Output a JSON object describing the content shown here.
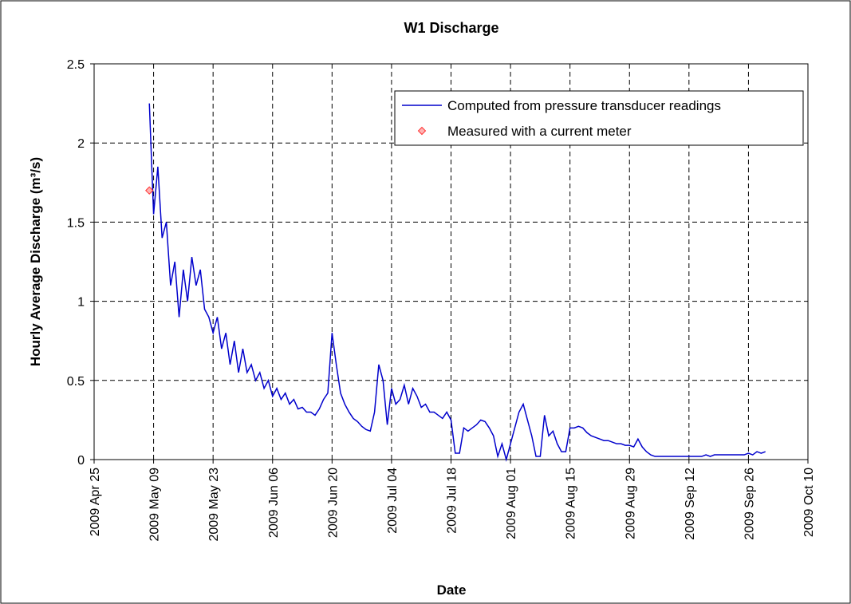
{
  "chart_data": {
    "type": "line",
    "title": "W1 Discharge",
    "x_label": "Date",
    "y_label": "Hourly Average Discharge (m³/s)",
    "xlim": [
      "2009-04-25",
      "2009-10-10"
    ],
    "xticks": [
      {
        "value": "2009-04-25",
        "label": "2009 Apr 25"
      },
      {
        "value": "2009-05-09",
        "label": "2009 May 09"
      },
      {
        "value": "2009-05-23",
        "label": "2009 May 23"
      },
      {
        "value": "2009-06-06",
        "label": "2009 Jun 06"
      },
      {
        "value": "2009-06-20",
        "label": "2009 Jun 20"
      },
      {
        "value": "2009-07-04",
        "label": "2009 Jul 04"
      },
      {
        "value": "2009-07-18",
        "label": "2009 Jul 18"
      },
      {
        "value": "2009-08-01",
        "label": "2009 Aug 01"
      },
      {
        "value": "2009-08-15",
        "label": "2009 Aug 15"
      },
      {
        "value": "2009-08-29",
        "label": "2009 Aug 29"
      },
      {
        "value": "2009-09-12",
        "label": "2009 Sep 12"
      },
      {
        "value": "2009-09-26",
        "label": "2009 Sep 26"
      },
      {
        "value": "2009-10-10",
        "label": "2009 Oct 10"
      }
    ],
    "ylim": [
      0,
      2.5
    ],
    "yticks": [
      0,
      0.5,
      1,
      1.5,
      2,
      2.5
    ],
    "grid": true,
    "legend": "upper right",
    "series": [
      {
        "name": "Computed from pressure transducer readings",
        "color": "#0000cc",
        "type": "line",
        "x": [
          "2009-05-08",
          "2009-05-09",
          "2009-05-10",
          "2009-05-11",
          "2009-05-12",
          "2009-05-13",
          "2009-05-14",
          "2009-05-15",
          "2009-05-16",
          "2009-05-17",
          "2009-05-18",
          "2009-05-19",
          "2009-05-20",
          "2009-05-21",
          "2009-05-22",
          "2009-05-23",
          "2009-05-24",
          "2009-05-25",
          "2009-05-26",
          "2009-05-27",
          "2009-05-28",
          "2009-05-29",
          "2009-05-30",
          "2009-05-31",
          "2009-06-01",
          "2009-06-02",
          "2009-06-03",
          "2009-06-04",
          "2009-06-05",
          "2009-06-06",
          "2009-06-07",
          "2009-06-08",
          "2009-06-09",
          "2009-06-10",
          "2009-06-11",
          "2009-06-12",
          "2009-06-13",
          "2009-06-14",
          "2009-06-15",
          "2009-06-16",
          "2009-06-17",
          "2009-06-18",
          "2009-06-19",
          "2009-06-20",
          "2009-06-21",
          "2009-06-22",
          "2009-06-23",
          "2009-06-24",
          "2009-06-25",
          "2009-06-26",
          "2009-06-27",
          "2009-06-28",
          "2009-06-29",
          "2009-06-30",
          "2009-07-01",
          "2009-07-02",
          "2009-07-03",
          "2009-07-04",
          "2009-07-05",
          "2009-07-06",
          "2009-07-07",
          "2009-07-08",
          "2009-07-09",
          "2009-07-10",
          "2009-07-11",
          "2009-07-12",
          "2009-07-13",
          "2009-07-14",
          "2009-07-15",
          "2009-07-16",
          "2009-07-17",
          "2009-07-18",
          "2009-07-19",
          "2009-07-20",
          "2009-07-21",
          "2009-07-22",
          "2009-07-23",
          "2009-07-24",
          "2009-07-25",
          "2009-07-26",
          "2009-07-27",
          "2009-07-28",
          "2009-07-29",
          "2009-07-30",
          "2009-07-31",
          "2009-08-01",
          "2009-08-02",
          "2009-08-03",
          "2009-08-04",
          "2009-08-05",
          "2009-08-06",
          "2009-08-07",
          "2009-08-08",
          "2009-08-09",
          "2009-08-10",
          "2009-08-11",
          "2009-08-12",
          "2009-08-13",
          "2009-08-14",
          "2009-08-15",
          "2009-08-16",
          "2009-08-17",
          "2009-08-18",
          "2009-08-19",
          "2009-08-20",
          "2009-08-21",
          "2009-08-22",
          "2009-08-23",
          "2009-08-24",
          "2009-08-25",
          "2009-08-26",
          "2009-08-27",
          "2009-08-28",
          "2009-08-29",
          "2009-08-30",
          "2009-08-31",
          "2009-09-01",
          "2009-09-02",
          "2009-09-03",
          "2009-09-04",
          "2009-09-05",
          "2009-09-06",
          "2009-09-07",
          "2009-09-08",
          "2009-09-09",
          "2009-09-10",
          "2009-09-11",
          "2009-09-12",
          "2009-09-13",
          "2009-09-14",
          "2009-09-15",
          "2009-09-16",
          "2009-09-17",
          "2009-09-18",
          "2009-09-19",
          "2009-09-20",
          "2009-09-21",
          "2009-09-22",
          "2009-09-23",
          "2009-09-24",
          "2009-09-25",
          "2009-09-26",
          "2009-09-27",
          "2009-09-28",
          "2009-09-29",
          "2009-09-30"
        ],
        "values": [
          2.25,
          1.55,
          1.85,
          1.4,
          1.5,
          1.1,
          1.25,
          0.9,
          1.2,
          1.0,
          1.28,
          1.1,
          1.2,
          0.95,
          0.9,
          0.8,
          0.9,
          0.7,
          0.8,
          0.6,
          0.75,
          0.55,
          0.7,
          0.55,
          0.6,
          0.5,
          0.55,
          0.45,
          0.5,
          0.4,
          0.45,
          0.38,
          0.42,
          0.35,
          0.38,
          0.32,
          0.33,
          0.3,
          0.3,
          0.28,
          0.32,
          0.38,
          0.42,
          0.8,
          0.6,
          0.42,
          0.35,
          0.3,
          0.26,
          0.24,
          0.21,
          0.19,
          0.18,
          0.3,
          0.6,
          0.5,
          0.22,
          0.45,
          0.35,
          0.38,
          0.47,
          0.35,
          0.45,
          0.4,
          0.33,
          0.35,
          0.3,
          0.3,
          0.28,
          0.26,
          0.3,
          0.25,
          0.04,
          0.04,
          0.2,
          0.18,
          0.2,
          0.22,
          0.25,
          0.24,
          0.2,
          0.15,
          0.02,
          0.1,
          0.0,
          0.1,
          0.2,
          0.3,
          0.35,
          0.25,
          0.15,
          0.02,
          0.02,
          0.28,
          0.15,
          0.18,
          0.1,
          0.05,
          0.05,
          0.2,
          0.2,
          0.21,
          0.2,
          0.17,
          0.15,
          0.14,
          0.13,
          0.12,
          0.12,
          0.11,
          0.1,
          0.1,
          0.09,
          0.09,
          0.08,
          0.13,
          0.08,
          0.05,
          0.03,
          0.02,
          0.02,
          0.02,
          0.02,
          0.02,
          0.02,
          0.02,
          0.02,
          0.02,
          0.02,
          0.02,
          0.02,
          0.03,
          0.02,
          0.03,
          0.03,
          0.03,
          0.03,
          0.03,
          0.03,
          0.03,
          0.03,
          0.04,
          0.03,
          0.05,
          0.04,
          0.05
        ]
      },
      {
        "name": "Measured with a current meter",
        "color": "#ff3333",
        "type": "scatter",
        "x": [
          "2009-05-08"
        ],
        "values": [
          1.7
        ]
      }
    ]
  }
}
